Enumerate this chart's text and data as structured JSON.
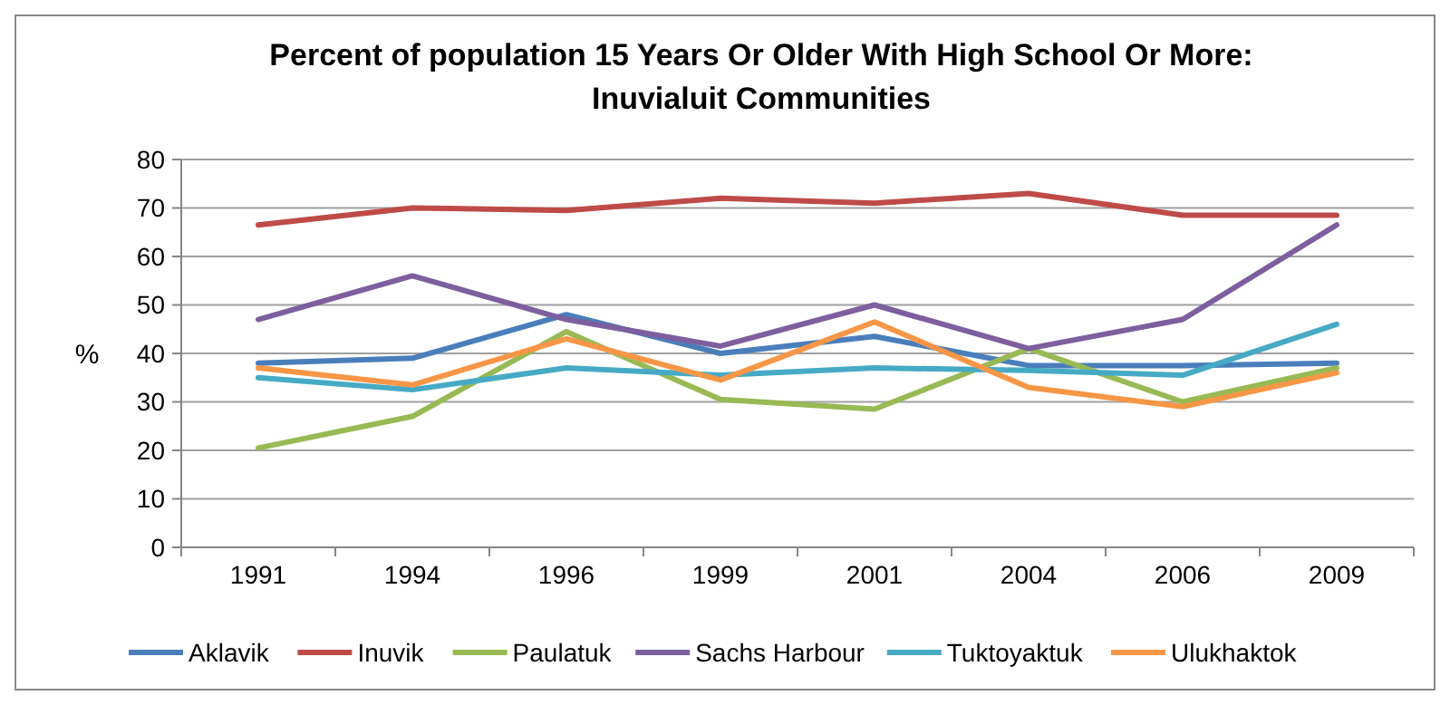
{
  "chart_data": {
    "type": "line",
    "title": "Percent of population 15 Years Or Older With High School Or More:\nInuvialuit Communities",
    "ylabel": "%",
    "categories": [
      "1991",
      "1994",
      "1996",
      "1999",
      "2001",
      "2004",
      "2006",
      "2009"
    ],
    "series": [
      {
        "name": "Aklavik",
        "color": "#4a7ebb",
        "values": [
          38,
          39,
          48,
          40,
          43.5,
          37.5,
          37.5,
          38
        ]
      },
      {
        "name": "Inuvik",
        "color": "#be4b48",
        "values": [
          66.5,
          70,
          69.5,
          72,
          71,
          73,
          68.5,
          68.5
        ]
      },
      {
        "name": "Paulatuk",
        "color": "#98b954",
        "values": [
          20.5,
          27,
          44.5,
          30.5,
          28.5,
          41,
          30,
          37
        ]
      },
      {
        "name": "Sachs Harbour",
        "color": "#7d5fa0",
        "values": [
          47,
          56,
          47,
          41.5,
          50,
          41,
          47,
          66.5
        ]
      },
      {
        "name": "Tuktoyaktuk",
        "color": "#46aac5",
        "values": [
          35,
          32.5,
          37,
          35.5,
          37,
          36.5,
          35.5,
          46
        ]
      },
      {
        "name": "Ulukhaktok",
        "color": "#f79646",
        "values": [
          37,
          33.5,
          43,
          34.5,
          46.5,
          33,
          29,
          36
        ]
      }
    ],
    "ylim": [
      0,
      80
    ],
    "yticks": [
      0,
      10,
      20,
      30,
      40,
      50,
      60,
      70,
      80
    ],
    "grid": "y",
    "legend": "bottom",
    "marker": "none",
    "line_style": "solid"
  }
}
